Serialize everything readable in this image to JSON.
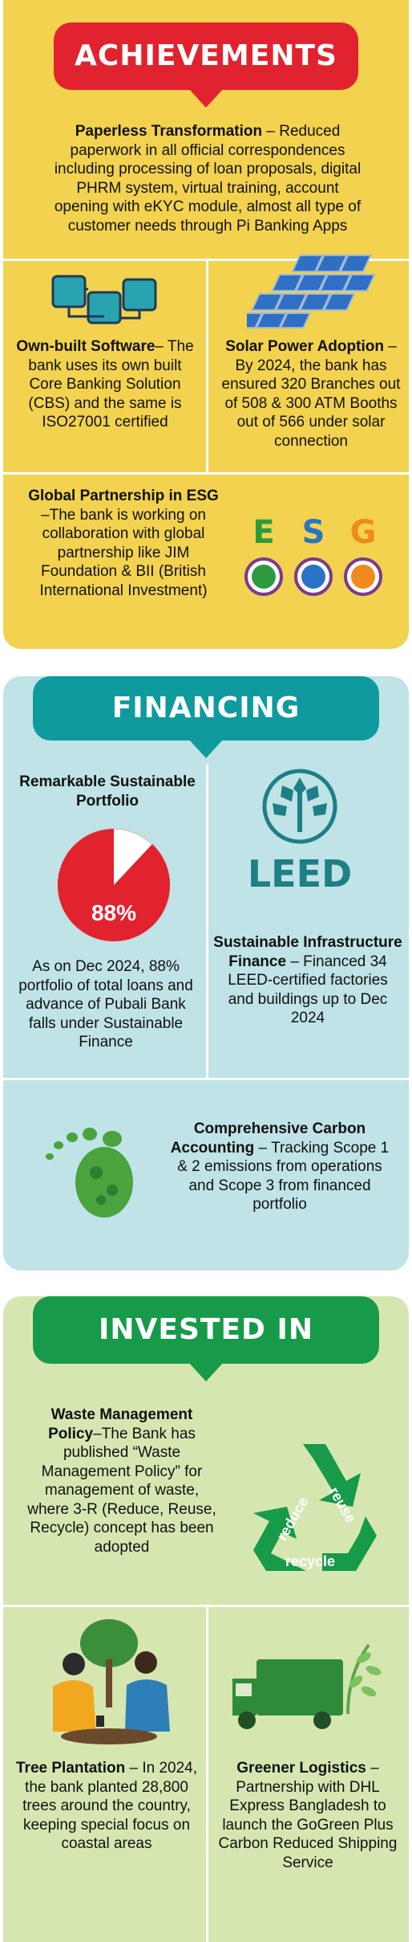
{
  "achievements": {
    "title": "ACHIEVEMENTS",
    "paperless": {
      "heading": "Paperless Transformation",
      "body": " – Reduced paperwork in all official correspondences including processing of loan proposals, digital PHRM system, virtual training, account opening with eKYC module, almost all type of customer needs through Pi Banking Apps"
    },
    "software": {
      "heading": "Own-built Software",
      "body": "– The bank uses its own built Core Banking Solution (CBS) and the same is ISO27001 certified"
    },
    "solar": {
      "heading": "Solar Power Adoption",
      "body": " – By 2024, the bank has ensured 320 Branches out of 508 & 300 ATM Booths out of 566 under solar connection"
    },
    "esg": {
      "heading": "Global Partnership in ESG",
      "body": " –The bank is working on collaboration with global partnership like JIM Foundation & BII (British International Investment)",
      "letters": [
        "E",
        "S",
        "G"
      ],
      "colors": [
        "#2e9a3e",
        "#2a74c6",
        "#f08a1d"
      ]
    }
  },
  "financing": {
    "title": "FINANCING",
    "portfolio": {
      "heading": "Remarkable Sustainable Portfolio",
      "pie_percent": 88,
      "pie_label": "88%",
      "body": "As on Dec 2024, 88% portfolio of total loans and advance of Pubali Bank falls under Sustainable Finance"
    },
    "leed": {
      "logo_text": "LEED",
      "heading": "Sustainable Infrastructure Finance",
      "body": " – Financed 34 LEED-certified factories and buildings up to Dec 2024"
    },
    "carbon": {
      "heading": "Comprehensive Carbon Accounting",
      "body": " – Tracking Scope 1 & 2 emissions from operations and Scope 3 from financed portfolio"
    }
  },
  "invested": {
    "title": "INVESTED IN",
    "waste": {
      "heading": "Waste Management Policy",
      "body": "–The Bank has published “Waste Management Policy” for management of waste, where 3-R (Reduce, Reuse, Recycle) concept has been adopted",
      "recycle_labels": [
        "reduce",
        "reuse",
        "recycle"
      ]
    },
    "tree": {
      "heading": "Tree Plantation",
      "body": " – In 2024, the bank planted 28,800 trees around the country, keeping special focus on coastal areas"
    },
    "logistics": {
      "heading": "Greener Logistics",
      "body": " – Partnership with DHL Express Bangladesh to launch the GoGreen Plus Carbon Reduced Shipping Service"
    }
  }
}
